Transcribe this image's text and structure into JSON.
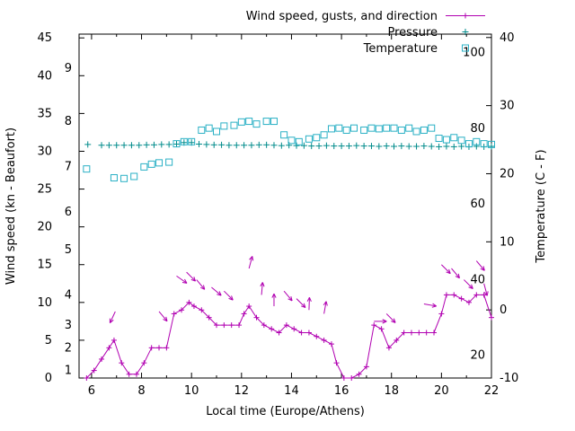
{
  "chart_data": {
    "type": "line",
    "xlabel": "Local time (Europe/Athens)",
    "ylabel_left": "Wind speed (kn - Beaufort)",
    "ylabel_right": "Temperature (C - F)",
    "x_range": [
      5.5,
      22
    ],
    "y_left_range": [
      0,
      45.5
    ],
    "y_right_range": [
      -10,
      40.5
    ],
    "x_ticks_major": [
      6,
      8,
      10,
      12,
      14,
      16,
      18,
      20,
      22
    ],
    "x_ticks_minor": [
      7,
      9,
      11,
      13,
      15,
      17,
      19,
      21
    ],
    "y_left_ticks": [
      0,
      5,
      10,
      15,
      20,
      25,
      30,
      35,
      40,
      45
    ],
    "y_right_ticks": [
      -10,
      0,
      10,
      20,
      30,
      40
    ],
    "beaufort_labels": [
      {
        "label": "1",
        "kn": 1
      },
      {
        "label": "2",
        "kn": 4
      },
      {
        "label": "3",
        "kn": 7
      },
      {
        "label": "4",
        "kn": 11
      },
      {
        "label": "5",
        "kn": 17
      },
      {
        "label": "6",
        "kn": 22
      },
      {
        "label": "7",
        "kn": 28
      },
      {
        "label": "8",
        "kn": 34
      },
      {
        "label": "9",
        "kn": 41
      }
    ],
    "fahrenheit_labels": [
      20,
      40,
      60,
      80,
      100
    ],
    "legend": [
      {
        "label": "Wind speed, gusts, and direction",
        "series": "wind"
      },
      {
        "label": "Pressure",
        "series": "pressure"
      },
      {
        "label": "Temperature",
        "series": "temperature"
      }
    ],
    "series": {
      "wind": {
        "color": "#b100b1",
        "points": [
          [
            5.8,
            0
          ],
          [
            6.1,
            1
          ],
          [
            6.4,
            2.5
          ],
          [
            6.7,
            4
          ],
          [
            6.9,
            5
          ],
          [
            7.2,
            2
          ],
          [
            7.5,
            0.5
          ],
          [
            7.8,
            0.5
          ],
          [
            8.1,
            2
          ],
          [
            8.4,
            4
          ],
          [
            8.7,
            4
          ],
          [
            9.0,
            4
          ],
          [
            9.3,
            8.5
          ],
          [
            9.6,
            9
          ],
          [
            9.9,
            10
          ],
          [
            10.1,
            9.5
          ],
          [
            10.4,
            9
          ],
          [
            10.7,
            8
          ],
          [
            11.0,
            7
          ],
          [
            11.3,
            7
          ],
          [
            11.6,
            7
          ],
          [
            11.9,
            7
          ],
          [
            12.1,
            8.5
          ],
          [
            12.3,
            9.5
          ],
          [
            12.6,
            8
          ],
          [
            12.9,
            7
          ],
          [
            13.2,
            6.5
          ],
          [
            13.5,
            6
          ],
          [
            13.8,
            7
          ],
          [
            14.1,
            6.5
          ],
          [
            14.4,
            6
          ],
          [
            14.7,
            6
          ],
          [
            15.0,
            5.5
          ],
          [
            15.3,
            5
          ],
          [
            15.6,
            4.5
          ],
          [
            15.8,
            2
          ],
          [
            16.1,
            0
          ],
          [
            16.4,
            0
          ],
          [
            16.7,
            0.5
          ],
          [
            17.0,
            1.5
          ],
          [
            17.3,
            7
          ],
          [
            17.6,
            6.5
          ],
          [
            17.9,
            4
          ],
          [
            18.2,
            5
          ],
          [
            18.5,
            6
          ],
          [
            18.8,
            6
          ],
          [
            19.1,
            6
          ],
          [
            19.4,
            6
          ],
          [
            19.7,
            6
          ],
          [
            20.0,
            8.5
          ],
          [
            20.2,
            11
          ],
          [
            20.5,
            11
          ],
          [
            20.8,
            10.5
          ],
          [
            21.1,
            10
          ],
          [
            21.4,
            11
          ],
          [
            21.7,
            11
          ],
          [
            22.0,
            8
          ]
        ]
      },
      "gust_arrows": {
        "color": "#b100b1",
        "arrows": [
          [
            6.95,
            8.8,
            -115
          ],
          [
            8.7,
            8.8,
            -50
          ],
          [
            9.4,
            13.5,
            -35
          ],
          [
            9.8,
            14,
            -45
          ],
          [
            10.2,
            13,
            -50
          ],
          [
            10.8,
            12,
            -40
          ],
          [
            11.3,
            11.5,
            -45
          ],
          [
            12.3,
            14.5,
            75
          ],
          [
            12.8,
            11,
            85
          ],
          [
            13.3,
            9.5,
            90
          ],
          [
            13.7,
            11.5,
            -50
          ],
          [
            14.2,
            10.5,
            -45
          ],
          [
            14.7,
            9,
            88
          ],
          [
            15.3,
            8.5,
            80
          ],
          [
            17.3,
            7.5,
            0
          ],
          [
            17.8,
            8.5,
            -45
          ],
          [
            19.3,
            9.8,
            -10
          ],
          [
            20.0,
            15,
            -45
          ],
          [
            20.4,
            14.5,
            -50
          ],
          [
            20.9,
            13,
            -45
          ],
          [
            21.4,
            15.5,
            -50
          ],
          [
            21.7,
            12.5,
            -75
          ]
        ]
      },
      "pressure": {
        "color": "#008b8b",
        "points": [
          [
            5.85,
            30.9
          ],
          [
            6.4,
            30.8
          ],
          [
            6.7,
            30.8
          ],
          [
            7.0,
            30.8
          ],
          [
            7.3,
            30.8
          ],
          [
            7.6,
            30.8
          ],
          [
            7.9,
            30.8
          ],
          [
            8.2,
            30.85
          ],
          [
            8.5,
            30.85
          ],
          [
            8.8,
            30.9
          ],
          [
            9.1,
            30.9
          ],
          [
            9.4,
            30.95
          ],
          [
            9.7,
            31.15
          ],
          [
            10.0,
            31.15
          ],
          [
            10.3,
            30.95
          ],
          [
            10.6,
            30.9
          ],
          [
            10.9,
            30.85
          ],
          [
            11.2,
            30.85
          ],
          [
            11.5,
            30.8
          ],
          [
            11.8,
            30.8
          ],
          [
            12.1,
            30.8
          ],
          [
            12.4,
            30.8
          ],
          [
            12.7,
            30.85
          ],
          [
            13.0,
            30.85
          ],
          [
            13.3,
            30.8
          ],
          [
            13.6,
            30.75
          ],
          [
            13.9,
            30.8
          ],
          [
            14.2,
            30.75
          ],
          [
            14.5,
            30.75
          ],
          [
            14.8,
            30.7
          ],
          [
            15.1,
            30.7
          ],
          [
            15.4,
            30.75
          ],
          [
            15.7,
            30.7
          ],
          [
            16.0,
            30.7
          ],
          [
            16.3,
            30.7
          ],
          [
            16.6,
            30.75
          ],
          [
            16.9,
            30.7
          ],
          [
            17.2,
            30.7
          ],
          [
            17.5,
            30.65
          ],
          [
            17.8,
            30.7
          ],
          [
            18.1,
            30.65
          ],
          [
            18.4,
            30.7
          ],
          [
            18.7,
            30.65
          ],
          [
            19.0,
            30.65
          ],
          [
            19.3,
            30.7
          ],
          [
            19.6,
            30.65
          ],
          [
            19.9,
            30.6
          ],
          [
            20.2,
            30.65
          ],
          [
            20.5,
            30.6
          ],
          [
            20.8,
            30.65
          ],
          [
            21.1,
            30.6
          ],
          [
            21.4,
            30.65
          ],
          [
            21.7,
            30.6
          ],
          [
            22.0,
            30.65
          ]
        ]
      },
      "temperature": {
        "color": "#2ab0c5",
        "points": [
          [
            5.8,
            20.7
          ],
          [
            6.9,
            19.4
          ],
          [
            7.3,
            19.3
          ],
          [
            7.7,
            19.6
          ],
          [
            8.1,
            21.0
          ],
          [
            8.4,
            21.4
          ],
          [
            8.7,
            21.6
          ],
          [
            9.1,
            21.7
          ],
          [
            9.4,
            24.4
          ],
          [
            9.7,
            24.7
          ],
          [
            10.0,
            24.7
          ],
          [
            10.4,
            26.4
          ],
          [
            10.7,
            26.7
          ],
          [
            11.0,
            26.2
          ],
          [
            11.3,
            27.0
          ],
          [
            11.7,
            27.1
          ],
          [
            12.0,
            27.6
          ],
          [
            12.3,
            27.7
          ],
          [
            12.6,
            27.3
          ],
          [
            13.0,
            27.7
          ],
          [
            13.3,
            27.7
          ],
          [
            13.7,
            25.7
          ],
          [
            14.0,
            24.9
          ],
          [
            14.3,
            24.7
          ],
          [
            14.7,
            25.1
          ],
          [
            15.0,
            25.3
          ],
          [
            15.3,
            25.7
          ],
          [
            15.6,
            26.6
          ],
          [
            15.9,
            26.7
          ],
          [
            16.2,
            26.4
          ],
          [
            16.5,
            26.7
          ],
          [
            16.9,
            26.4
          ],
          [
            17.2,
            26.7
          ],
          [
            17.5,
            26.6
          ],
          [
            17.8,
            26.7
          ],
          [
            18.1,
            26.7
          ],
          [
            18.4,
            26.4
          ],
          [
            18.7,
            26.7
          ],
          [
            19.0,
            26.2
          ],
          [
            19.3,
            26.4
          ],
          [
            19.6,
            26.7
          ],
          [
            19.9,
            25.2
          ],
          [
            20.2,
            25.0
          ],
          [
            20.5,
            25.3
          ],
          [
            20.8,
            24.9
          ],
          [
            21.1,
            24.4
          ],
          [
            21.4,
            24.7
          ],
          [
            21.7,
            24.4
          ],
          [
            22.0,
            24.3
          ]
        ]
      }
    },
    "layout": {
      "grid": false,
      "legend_position": "top-right-inside",
      "axis_color": "#000000",
      "background": "#ffffff"
    }
  }
}
